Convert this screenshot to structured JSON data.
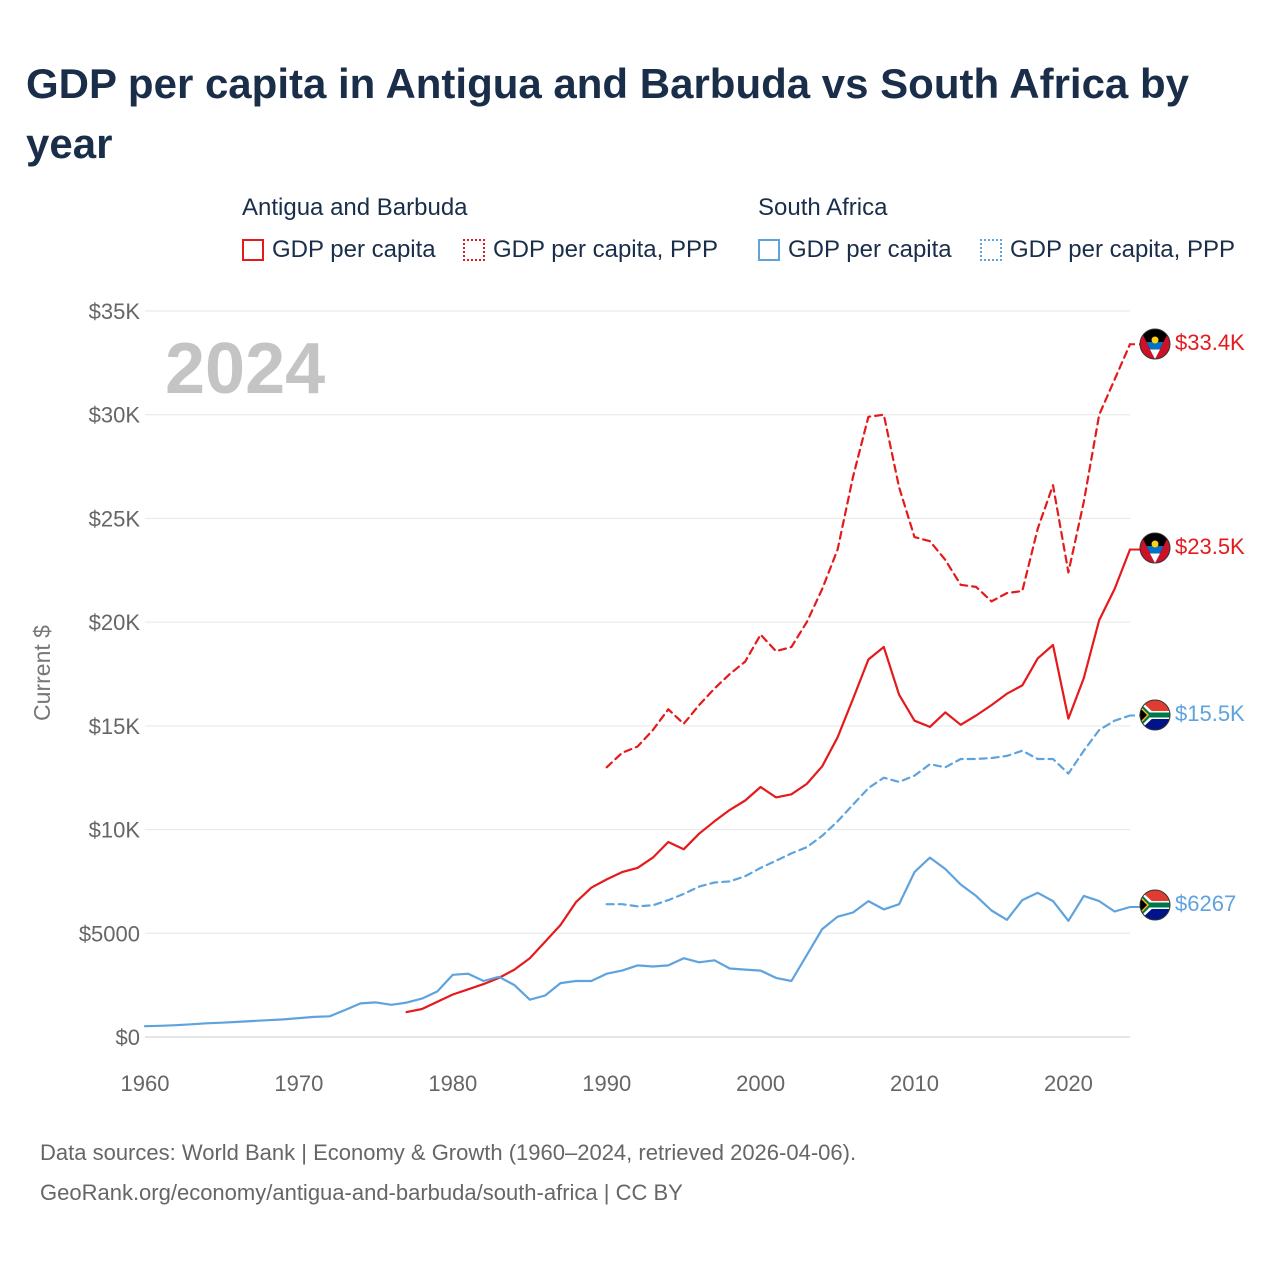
{
  "chart_data": {
    "type": "line",
    "title": "GDP per capita in Antigua and Barbuda vs South Africa by year",
    "year_label": "2024",
    "xlabel": "",
    "ylabel": "Current $",
    "xlim": [
      1960,
      2024
    ],
    "ylim": [
      0,
      35000
    ],
    "x_ticks": [
      1960,
      1970,
      1980,
      1990,
      2000,
      2010,
      2020
    ],
    "x_tick_labels": [
      "1960",
      "1970",
      "1980",
      "1990",
      "2000",
      "2010",
      "2020"
    ],
    "y_ticks": [
      0,
      5000,
      10000,
      15000,
      20000,
      25000,
      30000,
      35000
    ],
    "y_tick_labels": [
      "$0",
      "$5000",
      "$10K",
      "$15K",
      "$20K",
      "$25K",
      "$30K",
      "$35K"
    ],
    "legend": {
      "groups": [
        {
          "country": "Antigua and Barbuda",
          "items": [
            "GDP per capita",
            "GDP per capita, PPP"
          ]
        },
        {
          "country": "South Africa",
          "items": [
            "GDP per capita",
            "GDP per capita, PPP"
          ]
        }
      ],
      "position": "top"
    },
    "series": [
      {
        "name": "Antigua and Barbuda GDP per capita, PPP",
        "color": "#e41a1c",
        "dashed": true,
        "end_label": "$33.4K",
        "x": [
          1990,
          1991,
          1992,
          1993,
          1994,
          1995,
          1996,
          1997,
          1998,
          1999,
          2000,
          2001,
          2002,
          2003,
          2004,
          2005,
          2006,
          2007,
          2008,
          2009,
          2010,
          2011,
          2012,
          2013,
          2014,
          2015,
          2016,
          2017,
          2018,
          2019,
          2020,
          2021,
          2022,
          2023,
          2024
        ],
        "values": [
          13000,
          13700,
          14000,
          14800,
          15800,
          15100,
          16000,
          16800,
          17500,
          18100,
          19400,
          18600,
          18800,
          20000,
          21600,
          23500,
          27000,
          29900,
          30000,
          26500,
          24100,
          23900,
          23000,
          21800,
          21700,
          21000,
          21400,
          21500,
          24500,
          26600,
          22400,
          25800,
          30000,
          31700,
          33400
        ]
      },
      {
        "name": "Antigua and Barbuda GDP per capita",
        "color": "#e41a1c",
        "dashed": false,
        "end_label": "$23.5K",
        "x": [
          1977,
          1978,
          1979,
          1980,
          1981,
          1982,
          1983,
          1984,
          1985,
          1986,
          1987,
          1988,
          1989,
          1990,
          1991,
          1992,
          1993,
          1994,
          1995,
          1996,
          1997,
          1998,
          1999,
          2000,
          2001,
          2002,
          2003,
          2004,
          2005,
          2006,
          2007,
          2008,
          2009,
          2010,
          2011,
          2012,
          2013,
          2014,
          2015,
          2016,
          2017,
          2018,
          2019,
          2020,
          2021,
          2022,
          2023,
          2024
        ],
        "values": [
          1200,
          1350,
          1700,
          2050,
          2300,
          2550,
          2850,
          3250,
          3800,
          4600,
          5400,
          6500,
          7200,
          7600,
          7950,
          8150,
          8650,
          9400,
          9050,
          9800,
          10400,
          10950,
          11400,
          12050,
          11550,
          11700,
          12200,
          13050,
          14450,
          16300,
          18200,
          18800,
          16500,
          15250,
          14950,
          15650,
          15050,
          15500,
          16000,
          16550,
          16950,
          18250,
          18900,
          15350,
          17300,
          20100,
          21600,
          23500
        ]
      },
      {
        "name": "South Africa GDP per capita, PPP",
        "color": "#5fa3de",
        "dashed": true,
        "end_label": "$15.5K",
        "x": [
          1990,
          1991,
          1992,
          1993,
          1994,
          1995,
          1996,
          1997,
          1998,
          1999,
          2000,
          2001,
          2002,
          2003,
          2004,
          2005,
          2006,
          2007,
          2008,
          2009,
          2010,
          2011,
          2012,
          2013,
          2014,
          2015,
          2016,
          2017,
          2018,
          2019,
          2020,
          2021,
          2022,
          2023,
          2024
        ],
        "values": [
          6400,
          6400,
          6300,
          6350,
          6600,
          6900,
          7250,
          7450,
          7500,
          7750,
          8150,
          8500,
          8850,
          9150,
          9700,
          10400,
          11200,
          12000,
          12500,
          12300,
          12600,
          13150,
          13000,
          13400,
          13400,
          13450,
          13550,
          13800,
          13400,
          13400,
          12700,
          13800,
          14800,
          15250,
          15500
        ]
      },
      {
        "name": "South Africa GDP per capita",
        "color": "#5fa3de",
        "dashed": false,
        "end_label": "$6267",
        "x": [
          1960,
          1961,
          1962,
          1963,
          1964,
          1965,
          1966,
          1967,
          1968,
          1969,
          1970,
          1971,
          1972,
          1973,
          1974,
          1975,
          1976,
          1977,
          1978,
          1979,
          1980,
          1981,
          1982,
          1983,
          1984,
          1985,
          1986,
          1987,
          1988,
          1989,
          1990,
          1991,
          1992,
          1993,
          1994,
          1995,
          1996,
          1997,
          1998,
          1999,
          2000,
          2001,
          2002,
          2003,
          2004,
          2005,
          2006,
          2007,
          2008,
          2009,
          2010,
          2011,
          2012,
          2013,
          2014,
          2015,
          2016,
          2017,
          2018,
          2019,
          2020,
          2021,
          2022,
          2023,
          2024
        ],
        "values": [
          520,
          540,
          570,
          610,
          660,
          690,
          730,
          770,
          810,
          850,
          910,
          970,
          1000,
          1300,
          1620,
          1670,
          1550,
          1660,
          1850,
          2200,
          3000,
          3050,
          2700,
          2900,
          2500,
          1800,
          2000,
          2600,
          2700,
          2700,
          3050,
          3200,
          3450,
          3400,
          3450,
          3800,
          3600,
          3700,
          3300,
          3250,
          3200,
          2850,
          2700,
          3950,
          5200,
          5800,
          6000,
          6550,
          6150,
          6400,
          7950,
          8650,
          8100,
          7350,
          6800,
          6100,
          5650,
          6600,
          6950,
          6550,
          5600,
          6800,
          6550,
          6050,
          6267
        ]
      }
    ]
  },
  "footer": {
    "line1": "Data sources: World Bank | Economy & Growth (1960–2024, retrieved 2026-04-06).",
    "line2": "GeoRank.org/economy/antigua-and-barbuda/south-africa | CC BY"
  },
  "flags": {
    "antigua": {
      "name": "antigua-and-barbuda-flag",
      "colors": [
        "#000000",
        "#0072c6",
        "#ffffff",
        "#ce1126",
        "#fcd116"
      ]
    },
    "south_africa": {
      "name": "south-africa-flag",
      "colors": [
        "#e03c31",
        "#001489",
        "#007749",
        "#000000",
        "#ffb81c",
        "#ffffff"
      ]
    }
  }
}
